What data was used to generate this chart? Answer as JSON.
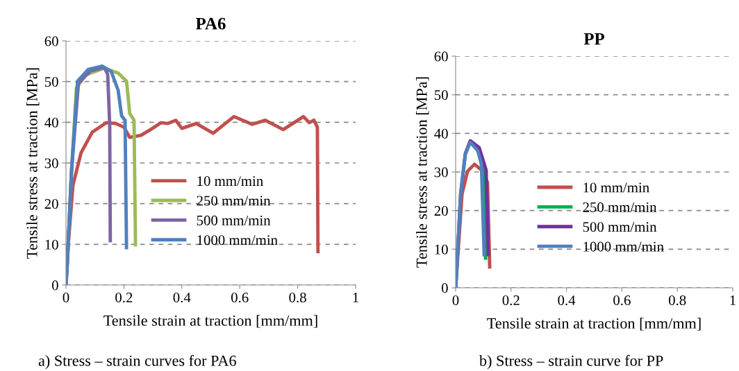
{
  "chart_data": [
    {
      "type": "line",
      "title": "PA6",
      "xlabel": "Tensile strain at traction [mm/mm]",
      "ylabel": "Tensile stress at traction [MPa]",
      "xlim": [
        0,
        1
      ],
      "xticks": [
        0,
        0.2,
        0.4,
        0.6,
        0.8,
        1
      ],
      "ylim": [
        0,
        60
      ],
      "yticks": [
        0,
        10,
        20,
        30,
        40,
        50,
        60
      ],
      "grid": "y",
      "legend": "right",
      "marker": "none",
      "line_style": "solid",
      "annotations": [
        "a) Stress – strain curves for PA6"
      ],
      "series": [
        {
          "name": "10 mm/min",
          "color": "#c0504d",
          "x": [
            0,
            0.004,
            0.024,
            0.052,
            0.091,
            0.139,
            0.172,
            0.2,
            0.22,
            0.259,
            0.292,
            0.328,
            0.352,
            0.379,
            0.4,
            0.45,
            0.508,
            0.58,
            0.643,
            0.688,
            0.75,
            0.82,
            0.84,
            0.856,
            0.868,
            0.87
          ],
          "values": [
            0,
            6.5,
            24.5,
            32.5,
            37.6,
            39.9,
            39.7,
            38.8,
            36.3,
            36.8,
            38.2,
            39.9,
            39.7,
            40.5,
            38.5,
            39.7,
            37.3,
            41.4,
            39.5,
            40.5,
            38.2,
            41.4,
            39.9,
            40.5,
            38.8,
            8.2
          ]
        },
        {
          "name": "250 mm/min",
          "color": "#9bbb59",
          "x": [
            0,
            0.005,
            0.019,
            0.036,
            0.067,
            0.132,
            0.18,
            0.209,
            0.22,
            0.235,
            0.24
          ],
          "values": [
            0,
            5.8,
            27.9,
            48.4,
            51.6,
            53.3,
            52.1,
            50.1,
            42.2,
            40.5,
            9.9
          ]
        },
        {
          "name": "500 mm/min",
          "color": "#8064a2",
          "x": [
            0,
            0.005,
            0.019,
            0.043,
            0.084,
            0.132,
            0.144,
            0.151,
            0.153
          ],
          "values": [
            0,
            5.8,
            27.9,
            49.6,
            52.6,
            53.5,
            51.8,
            39.4,
            10.9
          ]
        },
        {
          "name": "1000 mm/min",
          "color": "#4f81bd",
          "x": [
            0,
            0.005,
            0.019,
            0.04,
            0.077,
            0.125,
            0.156,
            0.18,
            0.192,
            0.204,
            0.209
          ],
          "values": [
            0,
            5.8,
            27.9,
            50.1,
            53,
            53.8,
            52.5,
            47.9,
            41.6,
            40.5,
            9.2
          ]
        }
      ]
    },
    {
      "type": "line",
      "title": "PP",
      "xlabel": "Tensile strain at traction [mm/mm]",
      "ylabel": "Tensile stress at traction [MPa]",
      "xlim": [
        0,
        1
      ],
      "xticks": [
        0,
        0.2,
        0.4,
        0.6,
        0.8,
        1
      ],
      "ylim": [
        0,
        60
      ],
      "yticks": [
        0,
        10,
        20,
        30,
        40,
        50,
        60
      ],
      "grid": "y",
      "legend": "right",
      "marker": "none",
      "line_style": "solid",
      "annotations": [
        "b) Stress – strain curve for PP"
      ],
      "series": [
        {
          "name": "10 mm/min",
          "color": "#c0504d",
          "x": [
            0,
            0.003,
            0.023,
            0.043,
            0.068,
            0.093,
            0.115,
            0.123
          ],
          "values": [
            0,
            3.2,
            24.2,
            30.2,
            32,
            30.5,
            27.3,
            5.4
          ]
        },
        {
          "name": "250 mm/min",
          "color": "#00b050",
          "x": [
            0.093,
            0.1,
            0.108
          ],
          "values": [
            32.5,
            30,
            7.7
          ]
        },
        {
          "name": "500 mm/min",
          "color": "#7030a0",
          "x": [
            0,
            0.003,
            0.018,
            0.035,
            0.053,
            0.085,
            0.11,
            0.118
          ],
          "values": [
            0,
            3.2,
            24.2,
            34.8,
            38.1,
            36.3,
            30.5,
            8.6
          ]
        },
        {
          "name": "1000 mm/min",
          "color": "#4f81bd",
          "x": [
            0,
            0.003,
            0.018,
            0.035,
            0.053,
            0.08,
            0.093,
            0.103
          ],
          "values": [
            0,
            3.2,
            24.2,
            34.5,
            37.7,
            35.5,
            32,
            8.6
          ]
        }
      ]
    }
  ]
}
